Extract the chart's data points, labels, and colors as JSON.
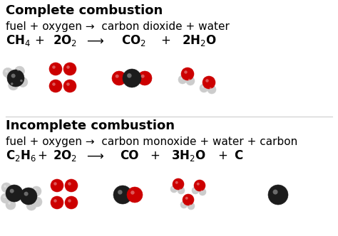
{
  "bg_color": "#ffffff",
  "title1": "Complete combustion",
  "title2": "Incomplete combustion",
  "eq1_word": "fuel + oxygen →  carbon dioxide + water",
  "eq2_word": "fuel + oxygen →  carbon monoxide + water + carbon",
  "carbon_color": "#1c1c1c",
  "oxygen_color": "#cc0000",
  "hydrogen_color": "#cccccc",
  "text_color": "#000000",
  "title_fontsize": 13,
  "formula_fontsize": 12,
  "word_fontsize": 11,
  "fig_width": 4.74,
  "fig_height": 3.32,
  "dpi": 100
}
